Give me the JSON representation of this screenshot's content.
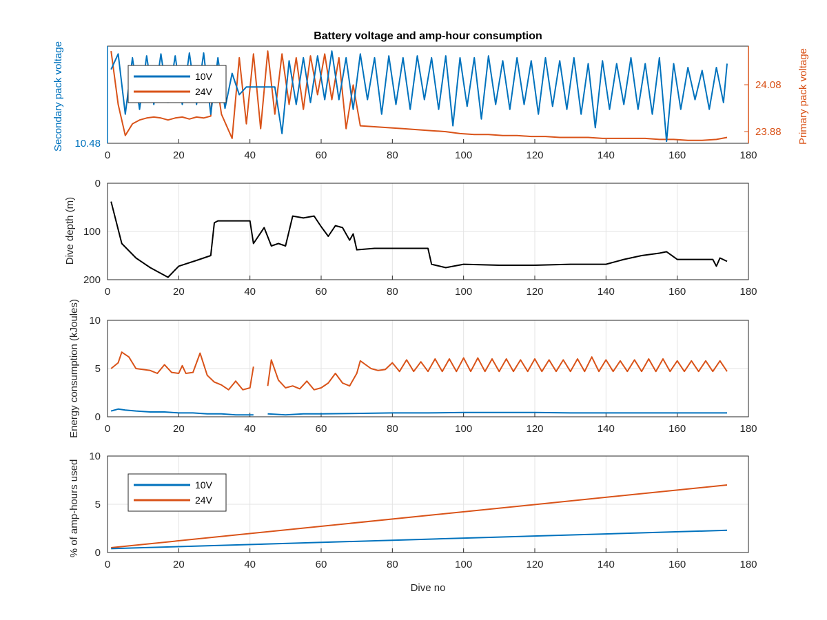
{
  "title": "Battery voltage and amp-hour consumption",
  "colors": {
    "v10": "#0072BD",
    "v24": "#D95319",
    "depth": "#000000",
    "grid": "#e3e3e3",
    "axes": "#262626"
  },
  "chart_data": [
    {
      "type": "line",
      "title": "Battery voltage and amp-hour consumption",
      "xlabel": "",
      "ylabel": "Secondary pack voltage",
      "ylabel_right": "Primary pack voltage",
      "xlim": [
        0,
        180
      ],
      "xticks": [
        "0",
        "20",
        "40",
        "60",
        "80",
        "100",
        "120",
        "140",
        "160",
        "180"
      ],
      "yticks_left": [
        "10.48"
      ],
      "yticks_right": [
        "24.08",
        "23.88"
      ],
      "grid": false,
      "legend": {
        "position": "top-left",
        "entries": [
          "10V",
          "24V"
        ]
      },
      "series": [
        {
          "name": "10V",
          "axis": "left",
          "color": "#0072BD",
          "x": [
            1,
            3,
            5,
            7,
            9,
            11,
            13,
            15,
            17,
            19,
            21,
            23,
            25,
            27,
            29,
            31,
            33,
            35,
            37,
            39,
            41,
            43,
            45,
            47,
            49,
            51,
            53,
            55,
            57,
            59,
            61,
            63,
            65,
            67,
            69,
            71,
            73,
            75,
            77,
            79,
            81,
            83,
            85,
            87,
            89,
            91,
            93,
            95,
            97,
            99,
            101,
            103,
            105,
            107,
            109,
            111,
            113,
            115,
            117,
            119,
            121,
            123,
            125,
            127,
            129,
            131,
            133,
            135,
            137,
            139,
            141,
            143,
            145,
            147,
            149,
            151,
            153,
            155,
            157,
            159,
            161,
            163,
            165,
            167,
            169,
            171,
            173,
            174
          ],
          "y": [
            0.76,
            0.92,
            0.3,
            0.88,
            0.35,
            0.9,
            0.4,
            0.92,
            0.42,
            0.9,
            0.4,
            0.93,
            0.4,
            0.93,
            0.3,
            0.88,
            0.36,
            0.72,
            0.5,
            0.58,
            0.58,
            0.58,
            0.58,
            0.58,
            0.1,
            0.85,
            0.4,
            0.88,
            0.42,
            0.9,
            0.45,
            0.95,
            0.45,
            0.88,
            0.35,
            0.92,
            0.45,
            0.88,
            0.3,
            0.9,
            0.4,
            0.88,
            0.35,
            0.9,
            0.45,
            0.88,
            0.35,
            0.9,
            0.18,
            0.88,
            0.38,
            0.88,
            0.25,
            0.9,
            0.4,
            0.85,
            0.35,
            0.88,
            0.4,
            0.85,
            0.3,
            0.88,
            0.38,
            0.85,
            0.35,
            0.88,
            0.3,
            0.82,
            0.16,
            0.85,
            0.35,
            0.82,
            0.4,
            0.88,
            0.35,
            0.82,
            0.3,
            0.88,
            0.02,
            0.82,
            0.35,
            0.78,
            0.45,
            0.75,
            0.35,
            0.78,
            0.42,
            0.82
          ]
        },
        {
          "name": "24V",
          "axis": "right",
          "color": "#D95319",
          "x": [
            1,
            3,
            5,
            7,
            9,
            11,
            13,
            15,
            17,
            19,
            21,
            23,
            25,
            27,
            29,
            30,
            32,
            35,
            37,
            39,
            41,
            43,
            45,
            47,
            49,
            51,
            53,
            55,
            57,
            59,
            61,
            63,
            65,
            67,
            69,
            71,
            75,
            79,
            83,
            87,
            91,
            95,
            99,
            103,
            107,
            111,
            115,
            119,
            123,
            127,
            131,
            135,
            139,
            143,
            147,
            151,
            155,
            159,
            163,
            167,
            171,
            174
          ],
          "y": [
            0.95,
            0.4,
            0.08,
            0.2,
            0.24,
            0.26,
            0.27,
            0.26,
            0.24,
            0.26,
            0.27,
            0.25,
            0.27,
            0.26,
            0.28,
            0.8,
            0.3,
            0.05,
            0.88,
            0.2,
            0.92,
            0.15,
            0.95,
            0.3,
            0.92,
            0.4,
            0.88,
            0.35,
            0.9,
            0.5,
            0.92,
            0.45,
            0.88,
            0.15,
            0.6,
            0.18,
            0.17,
            0.16,
            0.15,
            0.14,
            0.13,
            0.12,
            0.1,
            0.09,
            0.09,
            0.08,
            0.08,
            0.07,
            0.07,
            0.06,
            0.06,
            0.06,
            0.05,
            0.05,
            0.05,
            0.05,
            0.04,
            0.04,
            0.03,
            0.03,
            0.04,
            0.06
          ]
        }
      ]
    },
    {
      "type": "line",
      "xlabel": "",
      "ylabel": "Dive depth (m)",
      "xlim": [
        0,
        180
      ],
      "ylim": [
        0,
        200
      ],
      "reversed_y": true,
      "xticks": [
        "0",
        "20",
        "40",
        "60",
        "80",
        "100",
        "120",
        "140",
        "160",
        "180"
      ],
      "yticks": [
        "0",
        "100",
        "200"
      ],
      "grid": true,
      "series": [
        {
          "color": "#000000",
          "x": [
            1,
            4,
            8,
            12,
            17,
            20,
            25,
            29,
            30,
            31,
            35,
            40,
            41,
            44,
            46,
            48,
            50,
            52,
            55,
            58,
            60,
            62,
            64,
            66,
            68,
            69,
            70,
            75,
            80,
            90,
            91,
            95,
            100,
            110,
            120,
            130,
            140,
            145,
            150,
            155,
            157,
            160,
            165,
            170,
            171,
            172,
            174
          ],
          "y": [
            38,
            125,
            155,
            175,
            195,
            172,
            160,
            150,
            82,
            78,
            78,
            78,
            125,
            92,
            130,
            125,
            130,
            68,
            72,
            68,
            90,
            110,
            88,
            92,
            118,
            105,
            138,
            135,
            135,
            135,
            168,
            175,
            168,
            170,
            170,
            168,
            168,
            158,
            150,
            145,
            142,
            158,
            158,
            158,
            172,
            155,
            162
          ]
        }
      ]
    },
    {
      "type": "line",
      "xlabel": "",
      "ylabel": "Energy consumption (kJoules)",
      "xlim": [
        0,
        180
      ],
      "ylim": [
        0,
        10
      ],
      "xticks": [
        "0",
        "20",
        "40",
        "60",
        "80",
        "100",
        "120",
        "140",
        "160",
        "180"
      ],
      "yticks": [
        "0",
        "5",
        "10"
      ],
      "grid": true,
      "series": [
        {
          "name": "24V",
          "color": "#D95319",
          "x": [
            1,
            3,
            4,
            6,
            8,
            10,
            12,
            14,
            16,
            18,
            20,
            21,
            22,
            24,
            26,
            28,
            30,
            32,
            34,
            36,
            38,
            40,
            41,
            null,
            45,
            46,
            48,
            50,
            52,
            54,
            56,
            58,
            60,
            62,
            64,
            66,
            68,
            70,
            71,
            74,
            76,
            78,
            80,
            82,
            84,
            86,
            88,
            90,
            92,
            94,
            96,
            98,
            100,
            102,
            104,
            106,
            108,
            110,
            112,
            114,
            116,
            118,
            120,
            122,
            124,
            126,
            128,
            130,
            132,
            134,
            136,
            138,
            140,
            142,
            144,
            146,
            148,
            150,
            152,
            154,
            156,
            158,
            160,
            162,
            164,
            166,
            168,
            170,
            172,
            174
          ],
          "y": [
            5.0,
            5.6,
            6.7,
            6.2,
            5.0,
            4.9,
            4.8,
            4.5,
            5.4,
            4.6,
            4.5,
            5.3,
            4.5,
            4.6,
            6.6,
            4.3,
            3.6,
            3.3,
            2.8,
            3.7,
            2.8,
            3.0,
            5.2,
            null,
            3.2,
            5.9,
            3.8,
            3.0,
            3.2,
            2.9,
            3.7,
            2.8,
            3.0,
            3.5,
            4.5,
            3.5,
            3.2,
            4.5,
            5.8,
            5.0,
            4.8,
            4.9,
            5.6,
            4.7,
            5.9,
            4.7,
            5.7,
            4.7,
            6.0,
            4.7,
            6.0,
            4.7,
            6.1,
            4.7,
            6.1,
            4.7,
            6.0,
            4.7,
            6.0,
            4.7,
            5.9,
            4.7,
            6.0,
            4.7,
            5.9,
            4.7,
            5.9,
            4.7,
            6.0,
            4.7,
            6.2,
            4.7,
            5.9,
            4.7,
            5.8,
            4.7,
            5.9,
            4.7,
            6.0,
            4.7,
            6.0,
            4.7,
            5.8,
            4.7,
            5.8,
            4.7,
            5.8,
            4.7,
            5.8,
            4.7
          ]
        },
        {
          "name": "10V",
          "color": "#0072BD",
          "x": [
            1,
            3,
            5,
            8,
            12,
            16,
            20,
            24,
            28,
            32,
            36,
            40,
            41,
            null,
            45,
            50,
            55,
            60,
            70,
            80,
            90,
            100,
            110,
            120,
            130,
            140,
            150,
            160,
            170,
            174
          ],
          "y": [
            0.6,
            0.8,
            0.7,
            0.6,
            0.5,
            0.5,
            0.4,
            0.4,
            0.3,
            0.3,
            0.2,
            0.2,
            0.2,
            null,
            0.3,
            0.2,
            0.3,
            0.3,
            0.35,
            0.4,
            0.4,
            0.45,
            0.45,
            0.45,
            0.4,
            0.4,
            0.4,
            0.4,
            0.4,
            0.4
          ]
        }
      ]
    },
    {
      "type": "line",
      "xlabel": "Dive no",
      "ylabel": "% of amp-hours used",
      "xlim": [
        0,
        180
      ],
      "ylim": [
        0,
        10
      ],
      "xticks": [
        "0",
        "20",
        "40",
        "60",
        "80",
        "100",
        "120",
        "140",
        "160",
        "180"
      ],
      "yticks": [
        "0",
        "5",
        "10"
      ],
      "grid": true,
      "legend": {
        "position": "top-left",
        "entries": [
          "10V",
          "24V"
        ]
      },
      "series": [
        {
          "name": "10V",
          "color": "#0072BD",
          "x": [
            1,
            174
          ],
          "y": [
            0.4,
            2.3
          ]
        },
        {
          "name": "24V",
          "color": "#D95319",
          "x": [
            1,
            174
          ],
          "y": [
            0.5,
            7.0
          ]
        }
      ]
    }
  ]
}
